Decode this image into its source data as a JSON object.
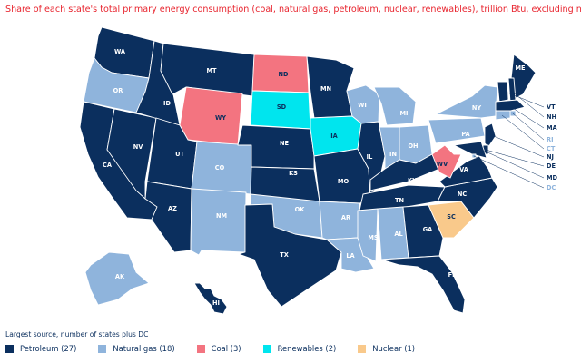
{
  "title": "Share of each state's total primary energy consumption (coal, natural gas, petroleum, nuclear, renewables), trillion Btu, excluding net intersta",
  "legend_title": "Largest source, number of states plus DC",
  "categories": [
    {
      "id": "petroleum",
      "label": "Petroleum (27)",
      "color": "#0b2f5e",
      "text": "#ffffff"
    },
    {
      "id": "gas",
      "label": "Natural gas (18)",
      "color": "#8fb4dc",
      "text": "#ffffff"
    },
    {
      "id": "coal",
      "label": "Coal (3)",
      "color": "#f37480",
      "text": "#0b2f5e"
    },
    {
      "id": "renew",
      "label": "Renewables (2)",
      "color": "#00e5ee",
      "text": "#0b2f5e"
    },
    {
      "id": "nuclear",
      "label": "Nuclear (1)",
      "color": "#f9c98b",
      "text": "#0b2f5e"
    }
  ],
  "states": {
    "WA": "petroleum",
    "OR": "gas",
    "CA": "petroleum",
    "NV": "petroleum",
    "ID": "petroleum",
    "MT": "petroleum",
    "WY": "coal",
    "UT": "petroleum",
    "AZ": "petroleum",
    "CO": "gas",
    "NM": "gas",
    "ND": "coal",
    "SD": "renew",
    "NE": "petroleum",
    "KS": "petroleum",
    "OK": "gas",
    "TX": "petroleum",
    "MN": "petroleum",
    "IA": "renew",
    "MO": "petroleum",
    "AR": "gas",
    "LA": "gas",
    "WI": "gas",
    "IL": "petroleum",
    "MI": "gas",
    "IN": "gas",
    "OH": "gas",
    "KY": "petroleum",
    "TN": "petroleum",
    "MS": "gas",
    "AL": "gas",
    "GA": "petroleum",
    "FL": "petroleum",
    "SC": "nuclear",
    "NC": "petroleum",
    "VA": "petroleum",
    "WV": "coal",
    "PA": "gas",
    "NY": "gas",
    "ME": "petroleum",
    "NH": "petroleum",
    "VT": "petroleum",
    "MA": "petroleum",
    "RI": "gas",
    "CT": "gas",
    "NJ": "petroleum",
    "DE": "petroleum",
    "MD": "petroleum",
    "DC": "gas",
    "AK": "gas",
    "HI": "petroleum"
  },
  "side_labels": [
    "VT",
    "NH",
    "MA",
    "RI",
    "CT",
    "NJ",
    "DE",
    "MD",
    "DC"
  ]
}
